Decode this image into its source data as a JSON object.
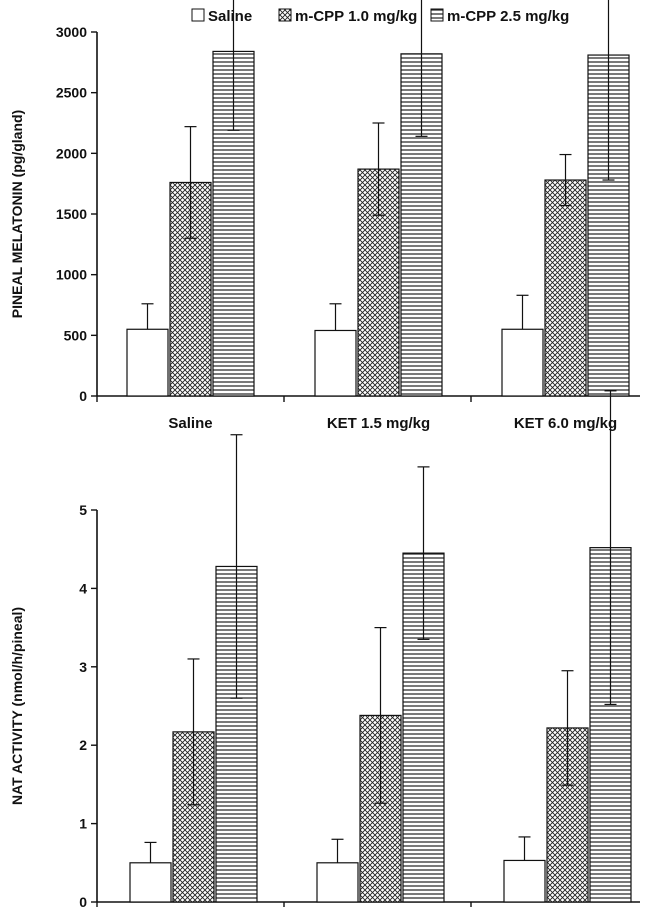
{
  "legend": [
    {
      "name": "Saline",
      "pattern": "open"
    },
    {
      "name": "m-CPP 1.0 mg/kg",
      "pattern": "crosshatch"
    },
    {
      "name": "m-CPP 2.5 mg/kg",
      "pattern": "horizontal"
    }
  ],
  "chart_data": [
    {
      "type": "bar",
      "ylabel": "PINEAL MELATONIN (pg/gland)",
      "xlabel": "",
      "ylim": [
        0,
        3000
      ],
      "yticks": [
        "0",
        "500",
        "1000",
        "1500",
        "2000",
        "2500",
        "3000"
      ],
      "categories": [
        "Saline",
        "KET 1.5 mg/kg",
        "KET 6.0 mg/kg"
      ],
      "series": [
        {
          "name": "Saline",
          "values": [
            550,
            540,
            550
          ],
          "error": [
            210,
            220,
            280
          ]
        },
        {
          "name": "m-CPP 1.0 mg/kg",
          "values": [
            1760,
            1870,
            1780
          ],
          "error": [
            460,
            380,
            210
          ]
        },
        {
          "name": "m-CPP 2.5 mg/kg",
          "values": [
            2840,
            2820,
            2810
          ],
          "error": [
            650,
            680,
            1030
          ]
        }
      ]
    },
    {
      "type": "bar",
      "ylabel": "NAT ACTIVITY (nmol/h/pineal)",
      "xlabel": "",
      "ylim": [
        0,
        5
      ],
      "yticks": [
        "0",
        "1",
        "2",
        "3",
        "4",
        "5"
      ],
      "categories": [
        "",
        "",
        ""
      ],
      "series": [
        {
          "name": "Saline",
          "values": [
            0.5,
            0.5,
            0.53
          ],
          "error": [
            0.26,
            0.3,
            0.3
          ]
        },
        {
          "name": "m-CPP 1.0 mg/kg",
          "values": [
            2.17,
            2.38,
            2.22
          ],
          "error": [
            0.93,
            1.12,
            0.73
          ]
        },
        {
          "name": "m-CPP 2.5 mg/kg",
          "values": [
            4.28,
            4.45,
            4.52
          ],
          "error": [
            1.68,
            1.1,
            2.0
          ]
        }
      ]
    }
  ]
}
